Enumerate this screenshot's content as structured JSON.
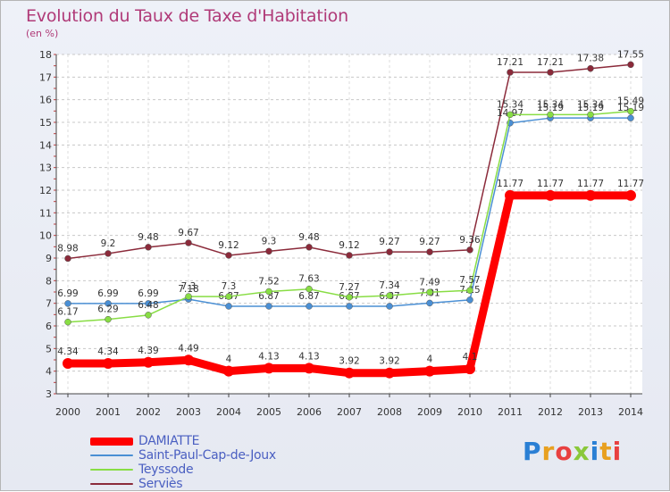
{
  "chart_data": {
    "type": "line",
    "title": "Evolution du Taux de Taxe d'Habitation",
    "unit_label": "(en %)",
    "x": [
      "2000",
      "2001",
      "2002",
      "2003",
      "2004",
      "2005",
      "2006",
      "2007",
      "2008",
      "2009",
      "2010",
      "2011",
      "2012",
      "2013",
      "2014"
    ],
    "y_ticks": [
      "3",
      "4",
      "5",
      "6",
      "7",
      "8",
      "9",
      "10",
      "11",
      "12",
      "13",
      "14",
      "15",
      "16",
      "17",
      "18"
    ],
    "ylim": [
      3,
      18
    ],
    "grid": "horizontal dashed",
    "legend_position": "bottom-left",
    "series": [
      {
        "name": "Serviès",
        "color": "#8b2a3a",
        "values": [
          8.98,
          9.2,
          9.48,
          9.67,
          9.12,
          9.3,
          9.48,
          9.12,
          9.27,
          9.27,
          9.36,
          17.21,
          17.21,
          17.38,
          17.55
        ],
        "labels": [
          "8.98",
          "9.2",
          "9.48",
          "9.67",
          "9.12",
          "9.3",
          "9.48",
          "9.12",
          "9.27",
          "9.27",
          "9.36",
          "17.21",
          "17.21",
          "17.38",
          "17.55"
        ]
      },
      {
        "name": "Saint-Paul-Cap-de-Joux",
        "color": "#4a8fd4",
        "values": [
          6.99,
          6.99,
          6.99,
          7.18,
          6.87,
          6.87,
          6.87,
          6.87,
          6.87,
          7.01,
          7.15,
          14.97,
          15.19,
          15.19,
          15.19
        ],
        "labels": [
          "6.99",
          "6.99",
          "6.99",
          "7.18",
          "6.87",
          "6.87",
          "6.87",
          "6.87",
          "6.87",
          "7.01",
          "7.15",
          "14.97",
          "15.19",
          "15.19",
          "15.19"
        ]
      },
      {
        "name": "Teyssode",
        "color": "#88dd44",
        "values": [
          6.17,
          6.29,
          6.48,
          7.3,
          7.3,
          7.52,
          7.63,
          7.27,
          7.34,
          7.49,
          7.57,
          15.34,
          15.34,
          15.34,
          15.49
        ],
        "labels": [
          "6.17",
          "6.29",
          "6.48",
          "7.3",
          "7.3",
          "7.52",
          "7.63",
          "7.27",
          "7.34",
          "7.49",
          "7.57",
          "15.34",
          "15.34",
          "15.34",
          "15.49"
        ]
      },
      {
        "name": "DAMIATTE",
        "color": "#ff0000",
        "values": [
          4.34,
          4.34,
          4.39,
          4.49,
          4.0,
          4.13,
          4.13,
          3.92,
          3.92,
          4.0,
          4.1,
          11.77,
          11.77,
          11.77,
          11.77
        ],
        "labels": [
          "4.34",
          "4.34",
          "4.39",
          "4.49",
          "4",
          "4.13",
          "4.13",
          "3.92",
          "3.92",
          "4",
          "4.1",
          "11.77",
          "11.77",
          "11.77",
          "11.77"
        ]
      }
    ]
  },
  "legend": [
    {
      "name": "DAMIATTE",
      "color": "#ff0000",
      "thickness": "thick"
    },
    {
      "name": "Saint-Paul-Cap-de-Joux",
      "color": "#4a8fd4",
      "thickness": "thin"
    },
    {
      "name": "Teyssode",
      "color": "#88dd44",
      "thickness": "thin"
    },
    {
      "name": "Serviès",
      "color": "#8b2a3a",
      "thickness": "thin"
    }
  ],
  "logo": {
    "text": "Proxiti",
    "letter_colors": [
      "#2a7fd4",
      "#e8a020",
      "#e84040",
      "#8ac83a",
      "#2a7fd4",
      "#e8a020",
      "#e84040"
    ]
  }
}
